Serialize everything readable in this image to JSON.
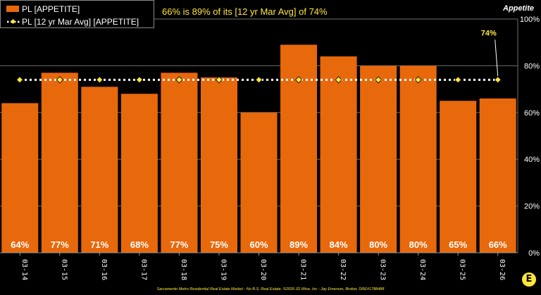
{
  "colors": {
    "bar": "#E8680C",
    "avg_line": "#FFFFFF",
    "avg_marker": "#FFE63B",
    "grid": "#6E6E6E",
    "headline": "#FFE63B"
  },
  "headline": "66% is 89% of its [12 yr Mar Avg] of 74%",
  "footer": "Sacramento Metro Residential Real Estate Market - No B.S. Real Estate, ©2026 JD Wise, Inc - Jay Emerson, Broker, DRE#1788488",
  "logo_letter": "E",
  "chart_data": {
    "type": "bar",
    "categories": [
      "03-14",
      "03-15",
      "03-16",
      "03-17",
      "03-18",
      "03-19",
      "03-20",
      "03-21",
      "03-22",
      "03-23",
      "03-24",
      "03-25",
      "03-26"
    ],
    "series": [
      {
        "name": "PL [APPETITE]",
        "type": "bar",
        "values": [
          64,
          77,
          71,
          68,
          77,
          75,
          60,
          89,
          84,
          80,
          80,
          65,
          66
        ],
        "labels": [
          "64%",
          "77%",
          "71%",
          "68%",
          "77%",
          "75%",
          "60%",
          "89%",
          "84%",
          "80%",
          "80%",
          "65%",
          "66%"
        ]
      },
      {
        "name": "PL [12 yr Mar Avg] [APPETITE]",
        "type": "line",
        "style": "dotted",
        "values": [
          74,
          74,
          74,
          74,
          74,
          74,
          74,
          74,
          74,
          74,
          74,
          74,
          74
        ]
      }
    ],
    "ylabel": "Appetite",
    "ylim": [
      0,
      100
    ],
    "yticks": [
      0,
      20,
      40,
      60,
      80,
      100
    ],
    "ytick_labels": [
      "0%",
      "20%",
      "40%",
      "60%",
      "80%",
      "100%"
    ],
    "avg_callout": "74%",
    "grid": true,
    "legend_position": "top-left"
  }
}
